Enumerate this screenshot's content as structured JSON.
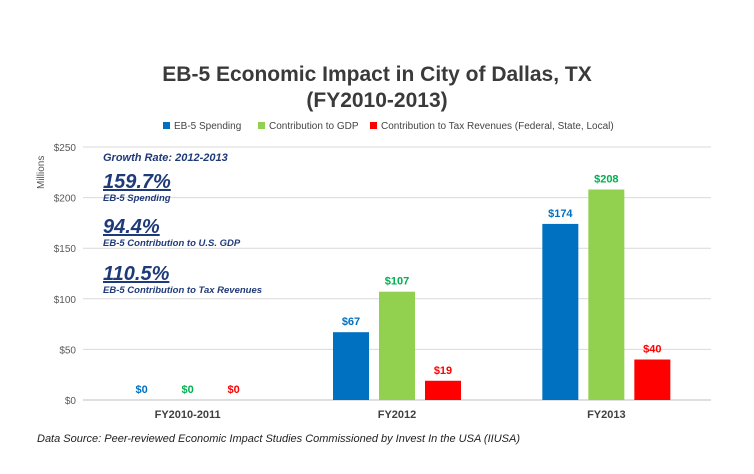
{
  "title_line1": "EB-5 Economic Impact in City of Dallas, TX",
  "title_line2": "(FY2010-2013)",
  "legend": [
    {
      "label": "EB-5 Spending",
      "color": "#0070c0"
    },
    {
      "label": "Contribution to GDP",
      "color": "#92d050"
    },
    {
      "label": "Contribution to Tax Revenues (Federal, State, Local)",
      "color": "#ff0000"
    }
  ],
  "ylabel": "Millions",
  "annotation": {
    "header": "Growth Rate: 2012-2013",
    "items": [
      {
        "value": "159.7%",
        "label": "EB-5 Spending"
      },
      {
        "value": "94.4%",
        "label": "EB-5 Contribution to U.S. GDP"
      },
      {
        "value": "110.5%",
        "label": "EB-5 Contribution to Tax Revenues"
      }
    ]
  },
  "source": "Data Source: Peer-reviewed Economic Impact Studies Commissioned by Invest In the USA (IIUSA)",
  "chart_data": {
    "type": "bar",
    "title": "EB-5 Economic Impact in City of Dallas, TX (FY2010-2013)",
    "xlabel": "",
    "ylabel": "Millions",
    "ylim": [
      0,
      250
    ],
    "yticks": [
      "$0",
      "$50",
      "$100",
      "$150",
      "$200",
      "$250"
    ],
    "ytick_values": [
      0,
      50,
      100,
      150,
      200,
      250
    ],
    "grid": true,
    "legend_position": "top",
    "categories": [
      "FY2010-2011",
      "FY2012",
      "FY2013"
    ],
    "series": [
      {
        "name": "EB-5 Spending",
        "color": "#0070c0",
        "values": [
          0,
          67,
          174
        ],
        "labels": [
          "$0",
          "$67",
          "$174"
        ]
      },
      {
        "name": "Contribution to GDP",
        "color": "#92d050",
        "label_color": "#00b050",
        "values": [
          0,
          107,
          208
        ],
        "labels": [
          "$0",
          "$107",
          "$208"
        ]
      },
      {
        "name": "Contribution to Tax Revenues (Federal, State, Local)",
        "color": "#ff0000",
        "values": [
          0,
          19,
          40
        ],
        "labels": [
          "$0",
          "$19",
          "$40"
        ]
      }
    ]
  }
}
